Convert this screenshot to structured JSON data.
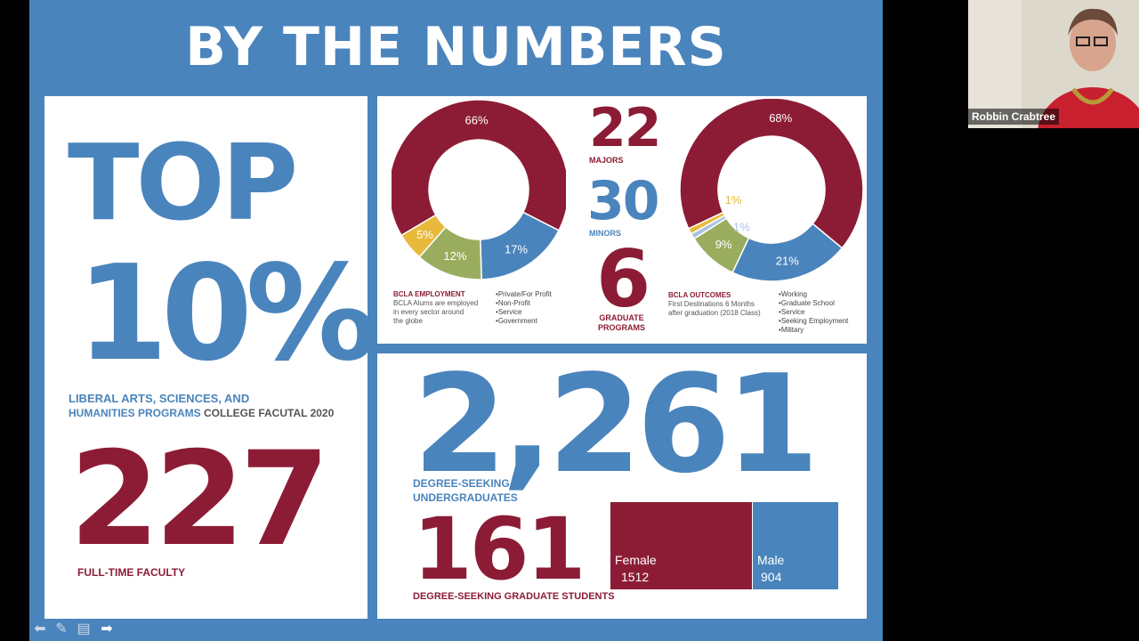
{
  "slide": {
    "title": "BY THE NUMBERS",
    "left": {
      "top_text": "TOP",
      "pct_text": "10%",
      "programs_line1": "LIBERAL ARTS, SCIENCES, AND",
      "programs_line2": "HUMANITIES PROGRAMS",
      "source": "COLLEGE FACUTAL 2020",
      "faculty_number": "227",
      "faculty_label": "FULL-TIME FACULTY"
    },
    "middle": {
      "majors_number": "22",
      "majors_label": "MAJORS",
      "minors_number": "30",
      "minors_label": "MINORS",
      "grad_number": "6",
      "grad_label_1": "GRADUATE",
      "grad_label_2": "PROGRAMS"
    },
    "employment": {
      "heading": "BCLA EMPLOYMENT",
      "desc_1": "BCLA Alums are employed",
      "desc_2": "in every sector around",
      "desc_3": "the globe",
      "legend": [
        "Private/For Profit",
        "Non-Profit",
        "Service",
        "Government"
      ]
    },
    "outcomes": {
      "heading": "BCLA OUTCOMES",
      "desc_1": "First Destinations 6 Months",
      "desc_2": "after graduation (2018 Class)",
      "legend": [
        "Working",
        "Graduate School",
        "Service",
        "Seeking Employment",
        "Military"
      ]
    },
    "undergrad": {
      "number": "2,261",
      "label_1": "DEGREE-SEEKING",
      "label_2": "UNDERGRADUATES"
    },
    "grad": {
      "number": "161",
      "label": "DEGREE-SEEKING GRADUATE STUDENTS"
    },
    "gender": {
      "female_label": "Female",
      "female_value": "1512",
      "male_label": "Male",
      "male_value": "904"
    }
  },
  "chart_data": [
    {
      "type": "pie",
      "title": "BCLA EMPLOYMENT",
      "categories": [
        "Private/For Profit",
        "Non-Profit",
        "Service",
        "Government"
      ],
      "values": [
        66,
        17,
        12,
        5
      ],
      "labels": [
        "66%",
        "17%",
        "12%",
        "5%"
      ],
      "colors": [
        "#8c1c35",
        "#4a84bc",
        "#9aad5f",
        "#e8b93a"
      ]
    },
    {
      "type": "pie",
      "title": "BCLA OUTCOMES",
      "categories": [
        "Working",
        "Graduate School",
        "Service",
        "Seeking Employment",
        "Military"
      ],
      "values": [
        68,
        21,
        9,
        1,
        1
      ],
      "labels": [
        "68%",
        "21%",
        "9%",
        "1%",
        "1%"
      ],
      "colors": [
        "#8c1c35",
        "#4a84bc",
        "#9aad5f",
        "#a8c3e0",
        "#e8b93a"
      ]
    },
    {
      "type": "bar",
      "categories": [
        "Female",
        "Male"
      ],
      "values": [
        1512,
        904
      ],
      "colors": [
        "#8c1c35",
        "#4a84bc"
      ]
    }
  ],
  "video": {
    "participant_name": "Robbin Crabtree"
  },
  "controls": {
    "icons": [
      "back-arrow-icon",
      "pen-icon",
      "menu-icon",
      "forward-arrow-icon"
    ]
  }
}
